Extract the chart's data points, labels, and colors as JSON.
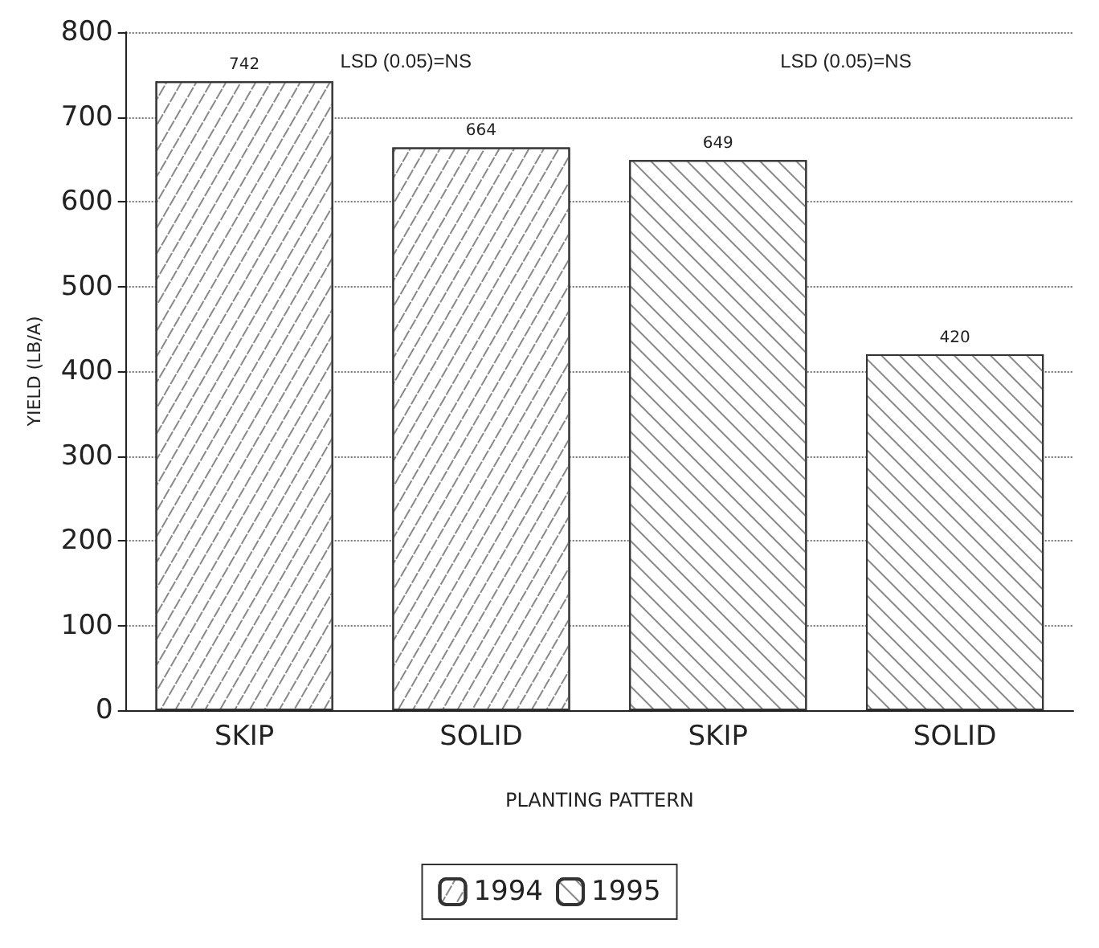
{
  "chart_data": {
    "type": "bar",
    "xlabel": "PLANTING PATTERN",
    "ylabel": "YIELD (LB/A)",
    "categories": [
      "SKIP",
      "SOLID",
      "SKIP",
      "SOLID"
    ],
    "series": [
      {
        "name": "1994",
        "color": "#ffffff",
        "values": [
          742,
          664,
          null,
          null
        ]
      },
      {
        "name": "1995",
        "color": "#ffffff",
        "values": [
          null,
          null,
          649,
          420
        ]
      }
    ],
    "ylim": [
      0,
      800
    ],
    "yticks": [
      0,
      100,
      200,
      300,
      400,
      500,
      600,
      700,
      800
    ],
    "grid": "y",
    "legend": "bottom",
    "data_labels": true,
    "annotations": [
      "LSD (0.05)=NS",
      "LSD (0.05)=NS"
    ]
  }
}
